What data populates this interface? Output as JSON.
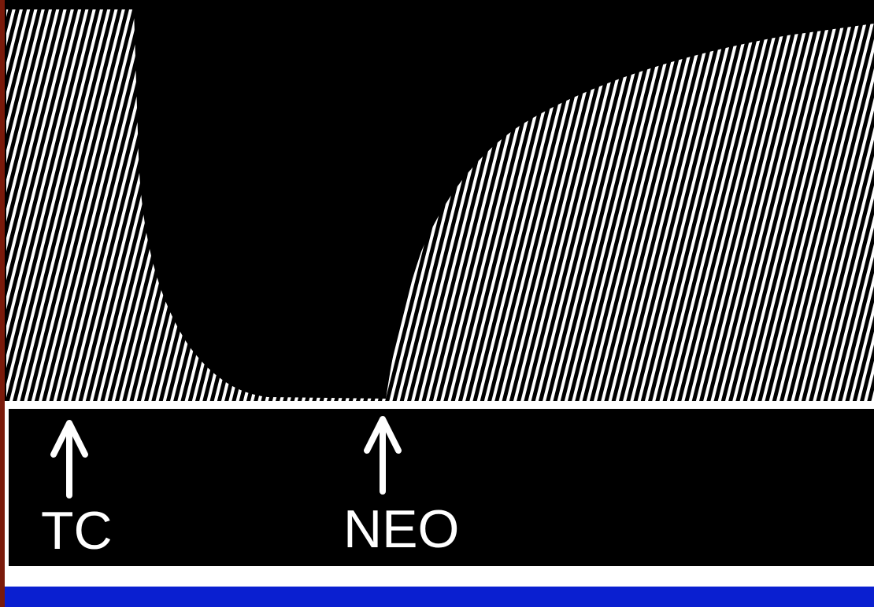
{
  "labels": {
    "tc": "TC",
    "neo": "NEO"
  }
}
